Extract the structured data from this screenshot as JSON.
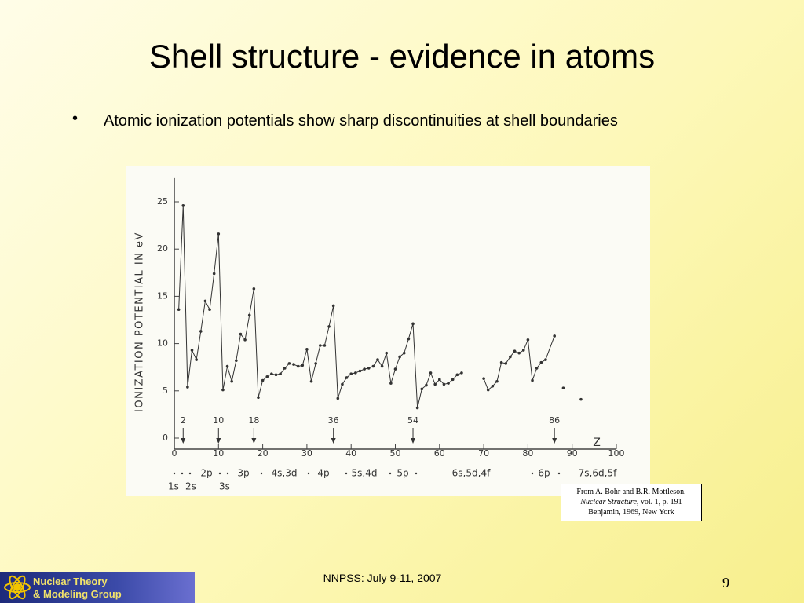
{
  "title": "Shell structure - evidence in atoms",
  "bullet": "Atomic ionization potentials show sharp discontinuities at shell boundaries",
  "chart_data": {
    "type": "line",
    "ylabel": "IONIZATION POTENTIAL IN eV",
    "xlabel": "Z",
    "xlim": [
      0,
      100
    ],
    "xticks": [
      0,
      10,
      20,
      30,
      40,
      50,
      60,
      70,
      80,
      90,
      100
    ],
    "ylim": [
      0,
      27.5
    ],
    "yticks": [
      0,
      5,
      10,
      15,
      20,
      25
    ],
    "color": "#333333",
    "x": [
      1,
      2,
      3,
      4,
      5,
      6,
      7,
      8,
      9,
      10,
      11,
      12,
      13,
      14,
      15,
      16,
      17,
      18,
      19,
      20,
      21,
      22,
      23,
      24,
      25,
      26,
      27,
      28,
      29,
      30,
      31,
      32,
      33,
      34,
      35,
      36,
      37,
      38,
      39,
      40,
      41,
      42,
      43,
      44,
      45,
      46,
      47,
      48,
      49,
      50,
      51,
      52,
      53,
      54,
      55,
      56,
      57,
      58,
      59,
      60,
      61,
      62,
      63,
      64,
      65,
      66,
      70,
      71,
      72,
      73,
      74,
      75,
      76,
      77,
      78,
      79,
      80,
      81,
      82,
      83,
      84,
      86,
      87,
      88,
      89,
      92
    ],
    "values": [
      13.6,
      24.6,
      5.4,
      9.3,
      8.3,
      11.3,
      14.5,
      13.6,
      17.4,
      21.6,
      5.1,
      7.6,
      6.0,
      8.2,
      11.0,
      10.4,
      13.0,
      15.8,
      4.3,
      6.1,
      6.5,
      6.8,
      6.7,
      6.8,
      7.4,
      7.9,
      7.8,
      7.6,
      7.7,
      9.4,
      6.0,
      7.9,
      9.8,
      9.8,
      11.8,
      14.0,
      4.2,
      5.7,
      6.4,
      6.8,
      6.9,
      7.1,
      7.3,
      7.4,
      7.6,
      8.3,
      7.6,
      9.0,
      5.8,
      7.3,
      8.6,
      9.0,
      10.5,
      12.1,
      3.2,
      5.2,
      5.6,
      6.9,
      5.7,
      6.2,
      5.7,
      5.8,
      6.2,
      6.7,
      6.9,
      null,
      6.3,
      5.1,
      5.5,
      6.0,
      8.0,
      7.9,
      8.6,
      9.2,
      9.0,
      9.3,
      10.4,
      6.1,
      7.4,
      8.0,
      8.3,
      10.8,
      null,
      5.3,
      null,
      4.1
    ],
    "arrows": [
      2,
      10,
      18,
      36,
      54,
      86
    ],
    "shell_labels_top": [
      "2p",
      "3p",
      "4s,3d",
      "4p",
      "5s,4d",
      "5p",
      "6s,5d,4f",
      "6p",
      "7s,6d,5f"
    ],
    "shell_labels_bottom": [
      "1s",
      "2s",
      "3s"
    ]
  },
  "citation": {
    "line1": "From A. Bohr and B.R. Mottleson,",
    "book": "Nuclear Structure",
    "line2_rest": ", vol. 1, p. 191",
    "line3": "Benjamin, 1969, New York"
  },
  "footer": {
    "logo_line1": "Nuclear Theory",
    "logo_line2": "& Modeling Group",
    "center": "NNPSS: July 9-11, 2007",
    "page": "9"
  }
}
